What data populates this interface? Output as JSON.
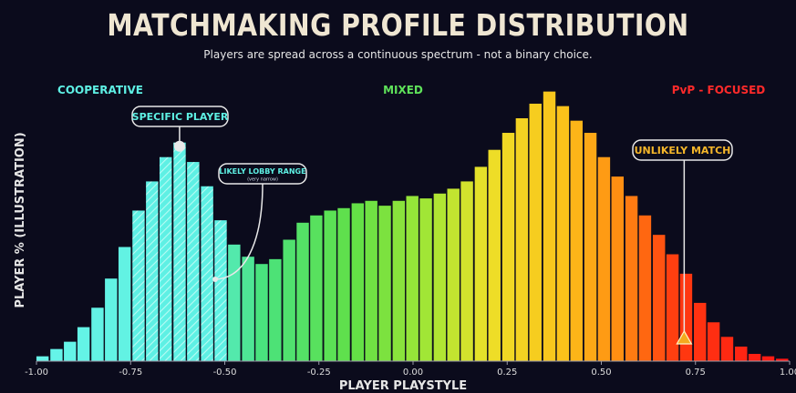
{
  "title": "MATCHMAKING PROFILE DISTRIBUTION",
  "subtitle": "Players are spread across a continuous spectrum - not a binary choice.",
  "zones": {
    "cooperative": {
      "label": "COOPERATIVE",
      "color": "#5ef0e4"
    },
    "mixed": {
      "label": "MIXED",
      "color": "#5fe25a"
    },
    "pvp": {
      "label": "PvP - FOCUSED",
      "color": "#ff2a2a"
    }
  },
  "callouts": {
    "specific_player": {
      "label": "SPECIFIC PLAYER",
      "x": -0.62
    },
    "lobby_range": {
      "label": "LIKELY LOBBY RANGE",
      "sublabel": "(very narrow)",
      "range": [
        -0.75,
        -0.5
      ]
    },
    "unlikely_match": {
      "label": "UNLIKELY MATCH",
      "x": 0.72
    }
  },
  "chart_data": {
    "type": "bar",
    "title": "MATCHMAKING PROFILE DISTRIBUTION",
    "subtitle": "Players are spread across a continuous spectrum - not a binary choice.",
    "xlabel": "PLAYER PLAYSTYLE",
    "ylabel": "PLAYER % (ILLUSTRATION)",
    "xlim": [
      -1.0,
      1.0
    ],
    "ylim": [
      0,
      100
    ],
    "grid": false,
    "xticks": [
      "-1.00",
      "-0.75",
      "-0.50",
      "-0.25",
      "0.00",
      "0.25",
      "0.50",
      "0.75",
      "1.00"
    ],
    "bin_width": 0.03636,
    "x": [
      -0.982,
      -0.945,
      -0.909,
      -0.873,
      -0.836,
      -0.8,
      -0.764,
      -0.727,
      -0.691,
      -0.655,
      -0.618,
      -0.582,
      -0.545,
      -0.509,
      -0.473,
      -0.436,
      -0.4,
      -0.364,
      -0.327,
      -0.291,
      -0.255,
      -0.218,
      -0.182,
      -0.145,
      -0.109,
      -0.073,
      -0.036,
      0.0,
      0.036,
      0.073,
      0.109,
      0.145,
      0.182,
      0.218,
      0.255,
      0.291,
      0.327,
      0.364,
      0.4,
      0.436,
      0.473,
      0.509,
      0.545,
      0.582,
      0.618,
      0.655,
      0.691,
      0.727,
      0.764,
      0.8,
      0.836,
      0.873,
      0.909,
      0.945,
      0.982
    ],
    "values": [
      2,
      5,
      8,
      14,
      22,
      34,
      47,
      62,
      74,
      84,
      90,
      82,
      72,
      58,
      48,
      43,
      40,
      42,
      50,
      57,
      60,
      62,
      63,
      65,
      66,
      64,
      66,
      68,
      67,
      69,
      71,
      74,
      80,
      87,
      94,
      100,
      106,
      111,
      105,
      99,
      94,
      84,
      76,
      68,
      60,
      52,
      44,
      36,
      24,
      16,
      10,
      6,
      3,
      2,
      1
    ]
  }
}
